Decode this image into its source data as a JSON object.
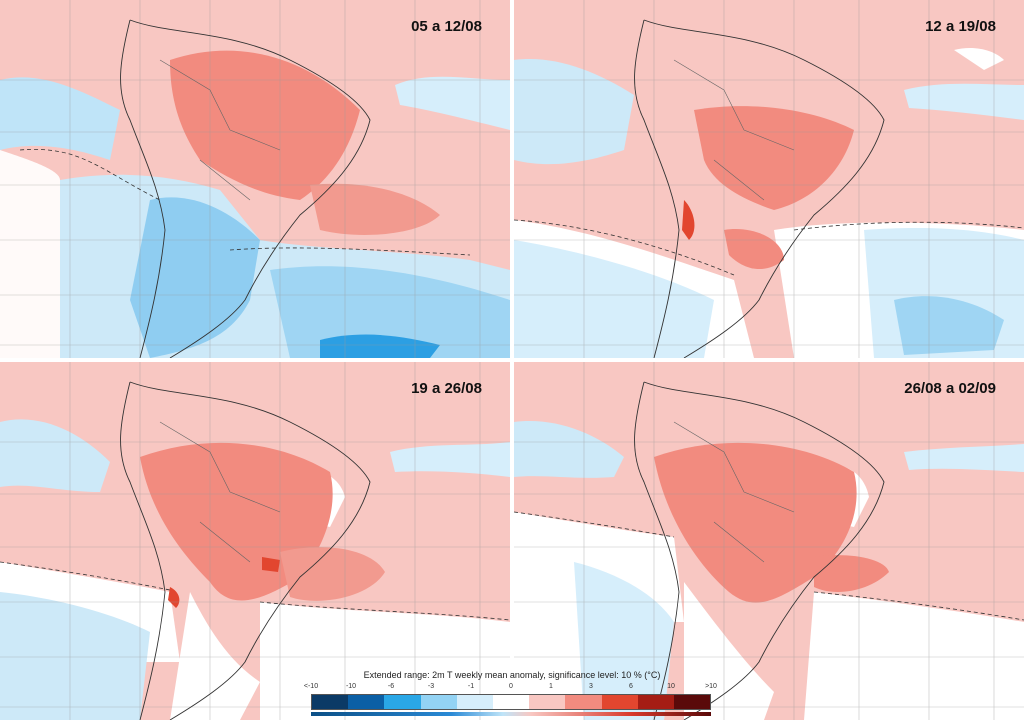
{
  "panels": [
    {
      "title": "05 a 12/08",
      "anomaly": "warm-north-cold-south"
    },
    {
      "title": "12 a 19/08",
      "anomaly": "warm-central-mild-south"
    },
    {
      "title": "19 a 26/08",
      "anomaly": "warm-central-strong"
    },
    {
      "title": "26/08 a 02/09",
      "anomaly": "warm-central-widespread"
    }
  ],
  "legend": {
    "title": "Extended range: 2m T weekly mean anomaly, significance level: 10 % (°C)",
    "ticks": [
      "<-10",
      "-10",
      "-6",
      "-3",
      "-1",
      "0",
      "1",
      "3",
      "6",
      "10",
      ">10"
    ],
    "colors": [
      "#0b3a66",
      "#0b5fa5",
      "#2aa7e6",
      "#93d3f4",
      "#d6eefb",
      "#ffffff",
      "#f8c7c2",
      "#f28b7f",
      "#e2462f",
      "#a51d14",
      "#5a0a0a"
    ]
  }
}
